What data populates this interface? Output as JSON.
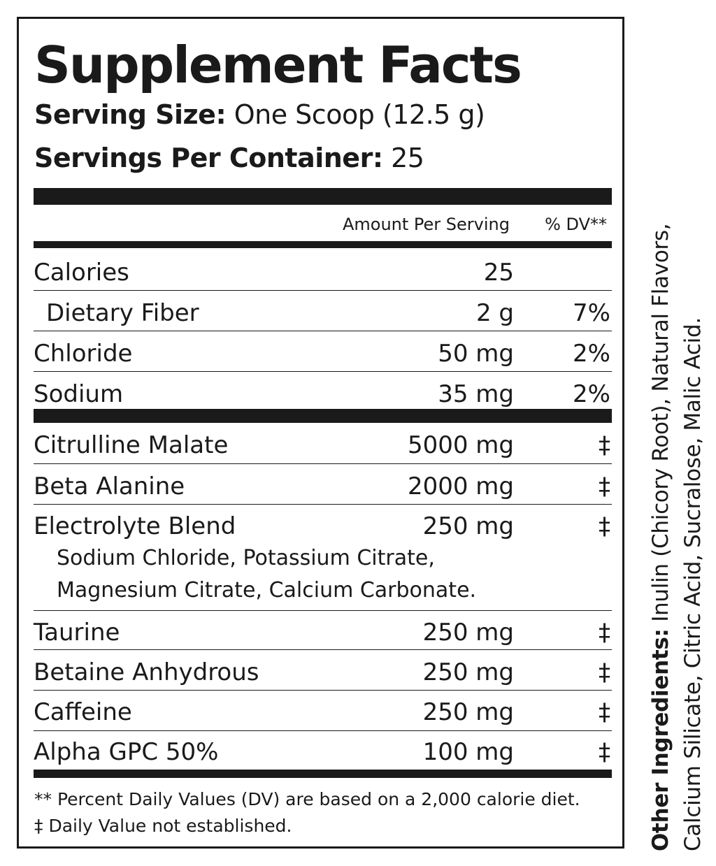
{
  "title": "Supplement Facts",
  "serving_size": {
    "label": "Serving Size:",
    "value": "One Scoop (12.5 g)"
  },
  "servings_per_container": {
    "label": "Servings Per Container:",
    "value": "25"
  },
  "columns": {
    "amount": "Amount Per Serving",
    "dv": "% DV**"
  },
  "group1": [
    {
      "name": "Calories",
      "amount": "25",
      "dv": ""
    },
    {
      "name": "Dietary Fiber",
      "amount": "2 g",
      "dv": "7%"
    },
    {
      "name": "Chloride",
      "amount": "50 mg",
      "dv": "2%"
    },
    {
      "name": "Sodium",
      "amount": "35 mg",
      "dv": "2%"
    }
  ],
  "group2": [
    {
      "name": "Citrulline Malate",
      "amount": "5000 mg",
      "dv": "‡"
    },
    {
      "name": "Beta Alanine",
      "amount": "2000 mg",
      "dv": "‡"
    },
    {
      "name": "Electrolyte Blend",
      "amount": "250 mg",
      "dv": "‡"
    }
  ],
  "blend_components": [
    "Sodium Chloride, Potassium Citrate,",
    "Magnesium Citrate, Calcium Carbonate."
  ],
  "group3": [
    {
      "name": "Taurine",
      "amount": "250 mg",
      "dv": "‡"
    },
    {
      "name": "Betaine Anhydrous",
      "amount": "250 mg",
      "dv": "‡"
    },
    {
      "name": "Caffeine",
      "amount": "250 mg",
      "dv": "‡"
    },
    {
      "name": "Alpha GPC 50%",
      "amount": "100 mg",
      "dv": "‡"
    }
  ],
  "footnotes": [
    "** Percent Daily Values (DV) are based on a 2,000 calorie diet.",
    "‡ Daily Value not established."
  ],
  "other_ingredients": {
    "label": "Other Ingredients:",
    "line1": "Inulin (Chicory Root), Natural Flavors,",
    "line2": "Calcium Silicate, Citric Acid, Sucralose, Malic Acid."
  }
}
